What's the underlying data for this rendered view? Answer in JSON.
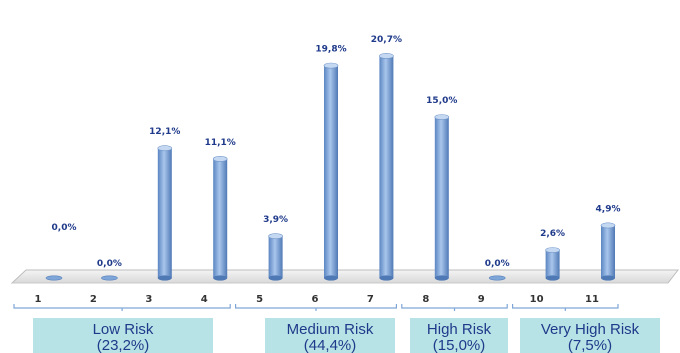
{
  "chart_data": {
    "type": "bar",
    "categories": [
      "1",
      "2",
      "3",
      "4",
      "5",
      "6",
      "7",
      "8",
      "9",
      "10",
      "11"
    ],
    "values": [
      0.0,
      0.0,
      12.1,
      11.1,
      3.9,
      19.8,
      20.7,
      15.0,
      0.0,
      2.6,
      4.9
    ],
    "data_labels": [
      "0,0%",
      "0,0%",
      "12,1%",
      "11,1%",
      "3,9%",
      "19,8%",
      "20,7%",
      "15,0%",
      "0,0%",
      "2,6%",
      "4,9%"
    ],
    "ylim": [
      0,
      22
    ],
    "grid": false,
    "bar_color": "#7fa6d8",
    "label_color": "#1f3a8a",
    "groups": [
      {
        "name": "Low Risk",
        "value": "(23,2%)",
        "categories": [
          "1",
          "2",
          "3",
          "4"
        ]
      },
      {
        "name": "Medium Risk",
        "value": "(44,4%)",
        "categories": [
          "5",
          "6",
          "7"
        ]
      },
      {
        "name": "High Risk",
        "value": "(15,0%)",
        "categories": [
          "8",
          "9"
        ]
      },
      {
        "name": "Very High Risk",
        "value": "(7,5%)",
        "categories": [
          "10",
          "11"
        ]
      }
    ]
  }
}
